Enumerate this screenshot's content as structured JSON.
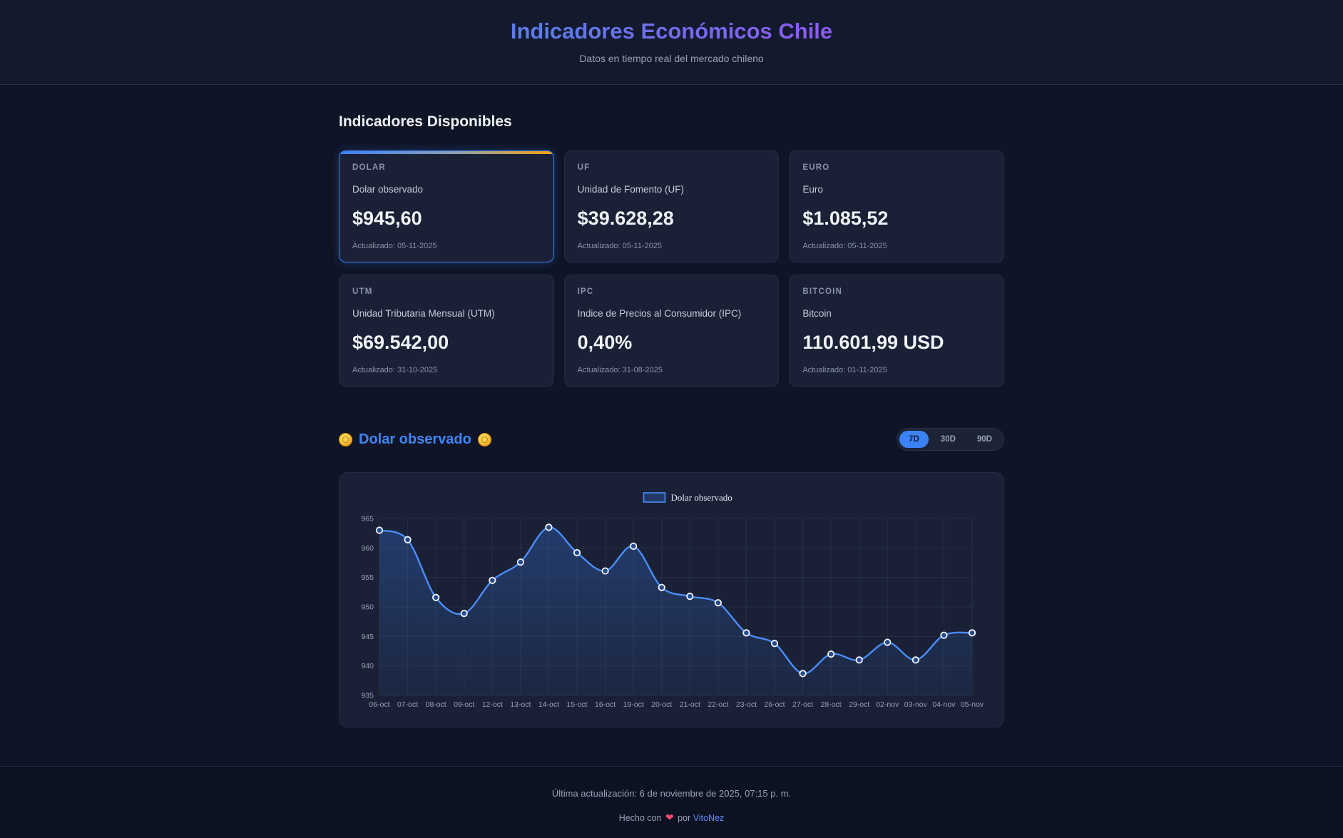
{
  "header": {
    "title": "Indicadores Económicos Chile",
    "subtitle": "Datos en tiempo real del mercado chileno"
  },
  "indicators": {
    "heading": "Indicadores Disponibles",
    "cards": [
      {
        "code": "DOLAR",
        "name": "Dolar observado",
        "value": "$945,60",
        "updated": "Actualizado: 05-11-2025",
        "selected": true
      },
      {
        "code": "UF",
        "name": "Unidad de Fomento (UF)",
        "value": "$39.628,28",
        "updated": "Actualizado: 05-11-2025",
        "selected": false
      },
      {
        "code": "EURO",
        "name": "Euro",
        "value": "$1.085,52",
        "updated": "Actualizado: 05-11-2025",
        "selected": false
      },
      {
        "code": "UTM",
        "name": "Unidad Tributaria Mensual (UTM)",
        "value": "$69.542,00",
        "updated": "Actualizado: 31-10-2025",
        "selected": false
      },
      {
        "code": "IPC",
        "name": "Indice de Precios al Consumidor (IPC)",
        "value": "0,40%",
        "updated": "Actualizado: 31-08-2025",
        "selected": false
      },
      {
        "code": "BITCOIN",
        "name": "Bitcoin",
        "value": "110.601,99 USD",
        "updated": "Actualizado: 01-11-2025",
        "selected": false
      }
    ]
  },
  "chart_section": {
    "title": "Dolar observado",
    "ranges": [
      {
        "label": "7D",
        "active": true
      },
      {
        "label": "30D",
        "active": false
      },
      {
        "label": "90D",
        "active": false
      }
    ]
  },
  "chart_data": {
    "type": "line",
    "title": "Dolar observado",
    "legend": [
      "Dolar observado"
    ],
    "legend_position": "top-center",
    "x": [
      "06-oct",
      "07-oct",
      "08-oct",
      "09-oct",
      "12-oct",
      "13-oct",
      "14-oct",
      "15-oct",
      "16-oct",
      "19-oct",
      "20-oct",
      "21-oct",
      "22-oct",
      "23-oct",
      "26-oct",
      "27-oct",
      "28-oct",
      "29-oct",
      "02-nov",
      "03-nov",
      "04-nov",
      "05-nov"
    ],
    "series": [
      {
        "name": "Dolar observado",
        "values": [
          963.0,
          961.4,
          951.6,
          948.9,
          954.5,
          957.6,
          963.5,
          959.2,
          956.1,
          960.3,
          953.3,
          951.8,
          950.7,
          945.6,
          943.8,
          938.7,
          942.0,
          941.0,
          944.0,
          941.0,
          945.2,
          945.6
        ]
      }
    ],
    "ylim": [
      935,
      965
    ],
    "yticks": [
      935,
      940,
      945,
      950,
      955,
      960,
      965
    ],
    "grid": true,
    "line_color": "#4a8df8",
    "fill_color_top": "rgba(59,130,246,0.28)",
    "fill_color_bottom": "rgba(59,130,246,0.06)",
    "point_fill": "#27498f",
    "point_stroke": "#f4f7ff",
    "grid_color": "rgba(148,163,184,0.10)",
    "tick_color": "#98a1b3"
  },
  "footer": {
    "last_update": "Última actualización: 6 de noviembre de 2025, 07:15 p. m.",
    "credit_prefix": "Hecho con",
    "heart_icon": "❤",
    "credit_middle": "por",
    "credit_link": "VitoNez"
  }
}
